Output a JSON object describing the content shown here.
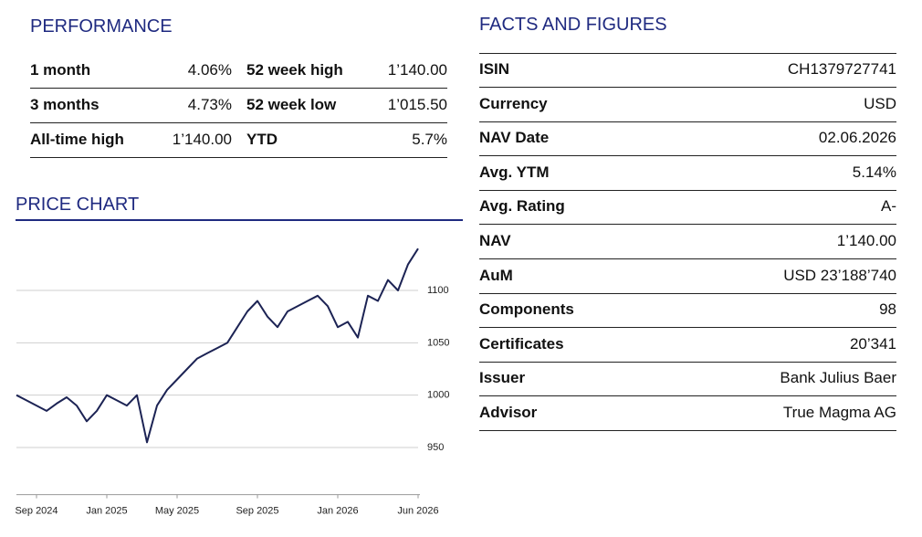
{
  "performance": {
    "title": "PERFORMANCE",
    "rows": [
      [
        "1 month",
        "4.06%",
        "52 week high",
        "1’140.00"
      ],
      [
        "3 months",
        "4.73%",
        "52 week low",
        "1’015.50"
      ],
      [
        "All-time high",
        "1’140.00",
        "YTD",
        "5.7%"
      ]
    ]
  },
  "facts": {
    "title": "FACTS AND FIGURES",
    "rows": [
      [
        "ISIN",
        "CH1379727741"
      ],
      [
        "Currency",
        "USD"
      ],
      [
        "NAV Date",
        "02.06.2026"
      ],
      [
        "Avg. YTM",
        "5.14%"
      ],
      [
        "Avg. Rating",
        "A-"
      ],
      [
        "NAV",
        "1’140.00"
      ],
      [
        "AuM",
        "USD 23’188’740"
      ],
      [
        "Components",
        "98"
      ],
      [
        "Certificates",
        "20’341"
      ],
      [
        "Issuer",
        "Bank Julius Baer"
      ],
      [
        "Advisor",
        "True Magma AG"
      ]
    ]
  },
  "chart_data": {
    "type": "line",
    "title": "PRICE CHART",
    "categories": [
      null,
      null,
      "Sep 2024",
      null,
      null,
      null,
      null,
      null,
      null,
      "Jan 2025",
      null,
      null,
      null,
      null,
      null,
      null,
      "May 2025",
      null,
      null,
      null,
      null,
      null,
      null,
      null,
      "Sep 2025",
      null,
      null,
      null,
      null,
      null,
      null,
      null,
      "Jan 2026",
      null,
      null,
      null,
      null,
      null,
      null,
      null,
      "Jun 2026"
    ],
    "series": [
      {
        "color": "#1c2354",
        "values": [
          1000,
          995,
          990,
          985,
          992,
          998,
          990,
          975,
          985,
          1000,
          995,
          990,
          1000,
          955,
          990,
          1005,
          1015,
          1025,
          1035,
          1040,
          1045,
          1050,
          1065,
          1080,
          1090,
          1075,
          1065,
          1080,
          1085,
          1090,
          1095,
          1085,
          1065,
          1070,
          1055,
          1095,
          1090,
          1110,
          1100,
          1125,
          1140
        ]
      }
    ],
    "ylim": [
      905,
      1150
    ],
    "yticks": [
      950,
      1000,
      1050,
      1100
    ],
    "grid": true
  }
}
